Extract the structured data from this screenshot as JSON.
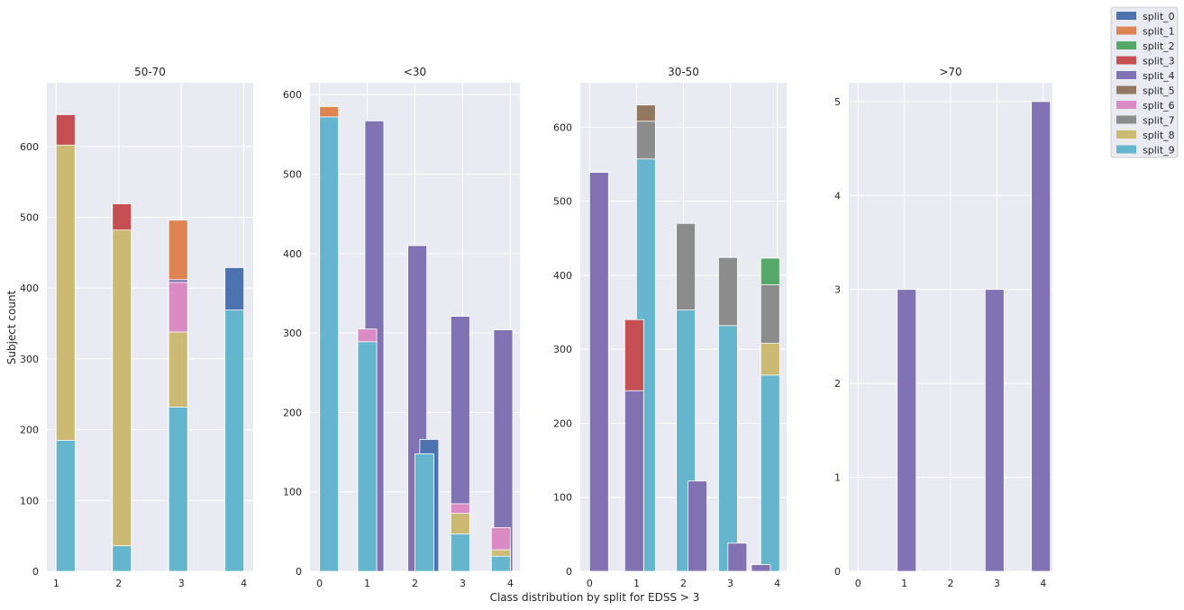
{
  "figure": {
    "ylabel": "Subject count",
    "xlabel": "Class distribution by split for EDSS > 3"
  },
  "legend": {
    "location": "top-right",
    "entries": [
      "split_0",
      "split_1",
      "split_2",
      "split_3",
      "split_4",
      "split_5",
      "split_6",
      "split_7",
      "split_8",
      "split_9"
    ]
  },
  "colors": {
    "background": "#eaeaf2",
    "grid": "#ffffff",
    "split_0": "#4c72b0",
    "split_1": "#dd8452",
    "split_2": "#55a868",
    "split_3": "#c44e52",
    "split_4": "#8172b3",
    "split_5": "#937860",
    "split_6": "#da8bc3",
    "split_7": "#8c8c8c",
    "split_8": "#ccb974",
    "split_9": "#64b5cd"
  },
  "chart_data": [
    {
      "type": "bar",
      "title": "50-70",
      "xlim": [
        0.85,
        4.15
      ],
      "ylim": [
        0,
        690
      ],
      "xticks": [
        1,
        2,
        3,
        4
      ],
      "yticks": [
        0,
        100,
        200,
        300,
        400,
        500,
        600
      ],
      "bars": [
        {
          "split": "split_3",
          "x": 1.15,
          "height": 645
        },
        {
          "split": "split_8",
          "x": 1.15,
          "height": 602
        },
        {
          "split": "split_9",
          "x": 1.15,
          "height": 185
        },
        {
          "split": "split_3",
          "x": 2.05,
          "height": 519
        },
        {
          "split": "split_8",
          "x": 2.05,
          "height": 482
        },
        {
          "split": "split_9",
          "x": 2.05,
          "height": 36
        },
        {
          "split": "split_1",
          "x": 2.95,
          "height": 496
        },
        {
          "split": "split_4",
          "x": 2.95,
          "height": 412
        },
        {
          "split": "split_6",
          "x": 2.95,
          "height": 408
        },
        {
          "split": "split_8",
          "x": 2.95,
          "height": 338
        },
        {
          "split": "split_9",
          "x": 2.95,
          "height": 232
        },
        {
          "split": "split_0",
          "x": 3.85,
          "height": 429
        },
        {
          "split": "split_9",
          "x": 3.85,
          "height": 369
        }
      ]
    },
    {
      "type": "bar",
      "title": "<30",
      "xlim": [
        -0.2,
        4.2
      ],
      "ylim": [
        0,
        615
      ],
      "xticks": [
        0,
        1,
        2,
        3,
        4
      ],
      "yticks": [
        0,
        100,
        200,
        300,
        400,
        500,
        600
      ],
      "bars": [
        {
          "split": "split_1",
          "x": 0.2,
          "height": 585
        },
        {
          "split": "split_9",
          "x": 0.2,
          "height": 572
        },
        {
          "split": "split_4",
          "x": 1.15,
          "height": 567
        },
        {
          "split": "split_6",
          "x": 1.0,
          "height": 305
        },
        {
          "split": "split_9",
          "x": 1.0,
          "height": 289
        },
        {
          "split": "split_4",
          "x": 2.05,
          "height": 410
        },
        {
          "split": "split_0",
          "x": 2.3,
          "height": 166
        },
        {
          "split": "split_9",
          "x": 2.2,
          "height": 148
        },
        {
          "split": "split_4",
          "x": 2.95,
          "height": 321
        },
        {
          "split": "split_6",
          "x": 2.95,
          "height": 85
        },
        {
          "split": "split_8",
          "x": 2.95,
          "height": 73
        },
        {
          "split": "split_9",
          "x": 2.95,
          "height": 47
        },
        {
          "split": "split_4",
          "x": 3.85,
          "height": 304
        },
        {
          "split": "split_6",
          "x": 3.8,
          "height": 55
        },
        {
          "split": "split_8",
          "x": 3.8,
          "height": 27
        },
        {
          "split": "split_9",
          "x": 3.8,
          "height": 19
        }
      ]
    },
    {
      "type": "bar",
      "title": "30-50",
      "xlim": [
        -0.2,
        4.2
      ],
      "ylim": [
        0,
        660
      ],
      "xticks": [
        0,
        1,
        2,
        3,
        4
      ],
      "yticks": [
        0,
        100,
        200,
        300,
        400,
        500,
        600
      ],
      "bars": [
        {
          "split": "split_4",
          "x": 0.2,
          "height": 539
        },
        {
          "split": "split_3",
          "x": 0.95,
          "height": 340
        },
        {
          "split": "split_4",
          "x": 0.95,
          "height": 244
        },
        {
          "split": "split_5",
          "x": 1.2,
          "height": 630
        },
        {
          "split": "split_7",
          "x": 1.2,
          "height": 608
        },
        {
          "split": "split_9",
          "x": 1.2,
          "height": 557
        },
        {
          "split": "split_7",
          "x": 2.05,
          "height": 470
        },
        {
          "split": "split_9",
          "x": 2.05,
          "height": 353
        },
        {
          "split": "split_4",
          "x": 2.3,
          "height": 122
        },
        {
          "split": "split_7",
          "x": 2.95,
          "height": 424
        },
        {
          "split": "split_9",
          "x": 2.95,
          "height": 332
        },
        {
          "split": "split_4",
          "x": 3.15,
          "height": 38
        },
        {
          "split": "split_2",
          "x": 3.85,
          "height": 423
        },
        {
          "split": "split_7",
          "x": 3.85,
          "height": 387
        },
        {
          "split": "split_8",
          "x": 3.85,
          "height": 308
        },
        {
          "split": "split_9",
          "x": 3.85,
          "height": 265
        },
        {
          "split": "split_4",
          "x": 3.65,
          "height": 9
        }
      ]
    },
    {
      "type": "bar",
      "title": ">70",
      "xlim": [
        -0.2,
        4.2
      ],
      "ylim": [
        0,
        5.2
      ],
      "xticks": [
        0,
        1,
        2,
        3,
        4
      ],
      "yticks": [
        0,
        1,
        2,
        3,
        4,
        5
      ],
      "bars": [
        {
          "split": "split_4",
          "x": 1.05,
          "height": 3
        },
        {
          "split": "split_4",
          "x": 2.95,
          "height": 3
        },
        {
          "split": "split_4",
          "x": 3.95,
          "height": 5
        }
      ]
    }
  ]
}
